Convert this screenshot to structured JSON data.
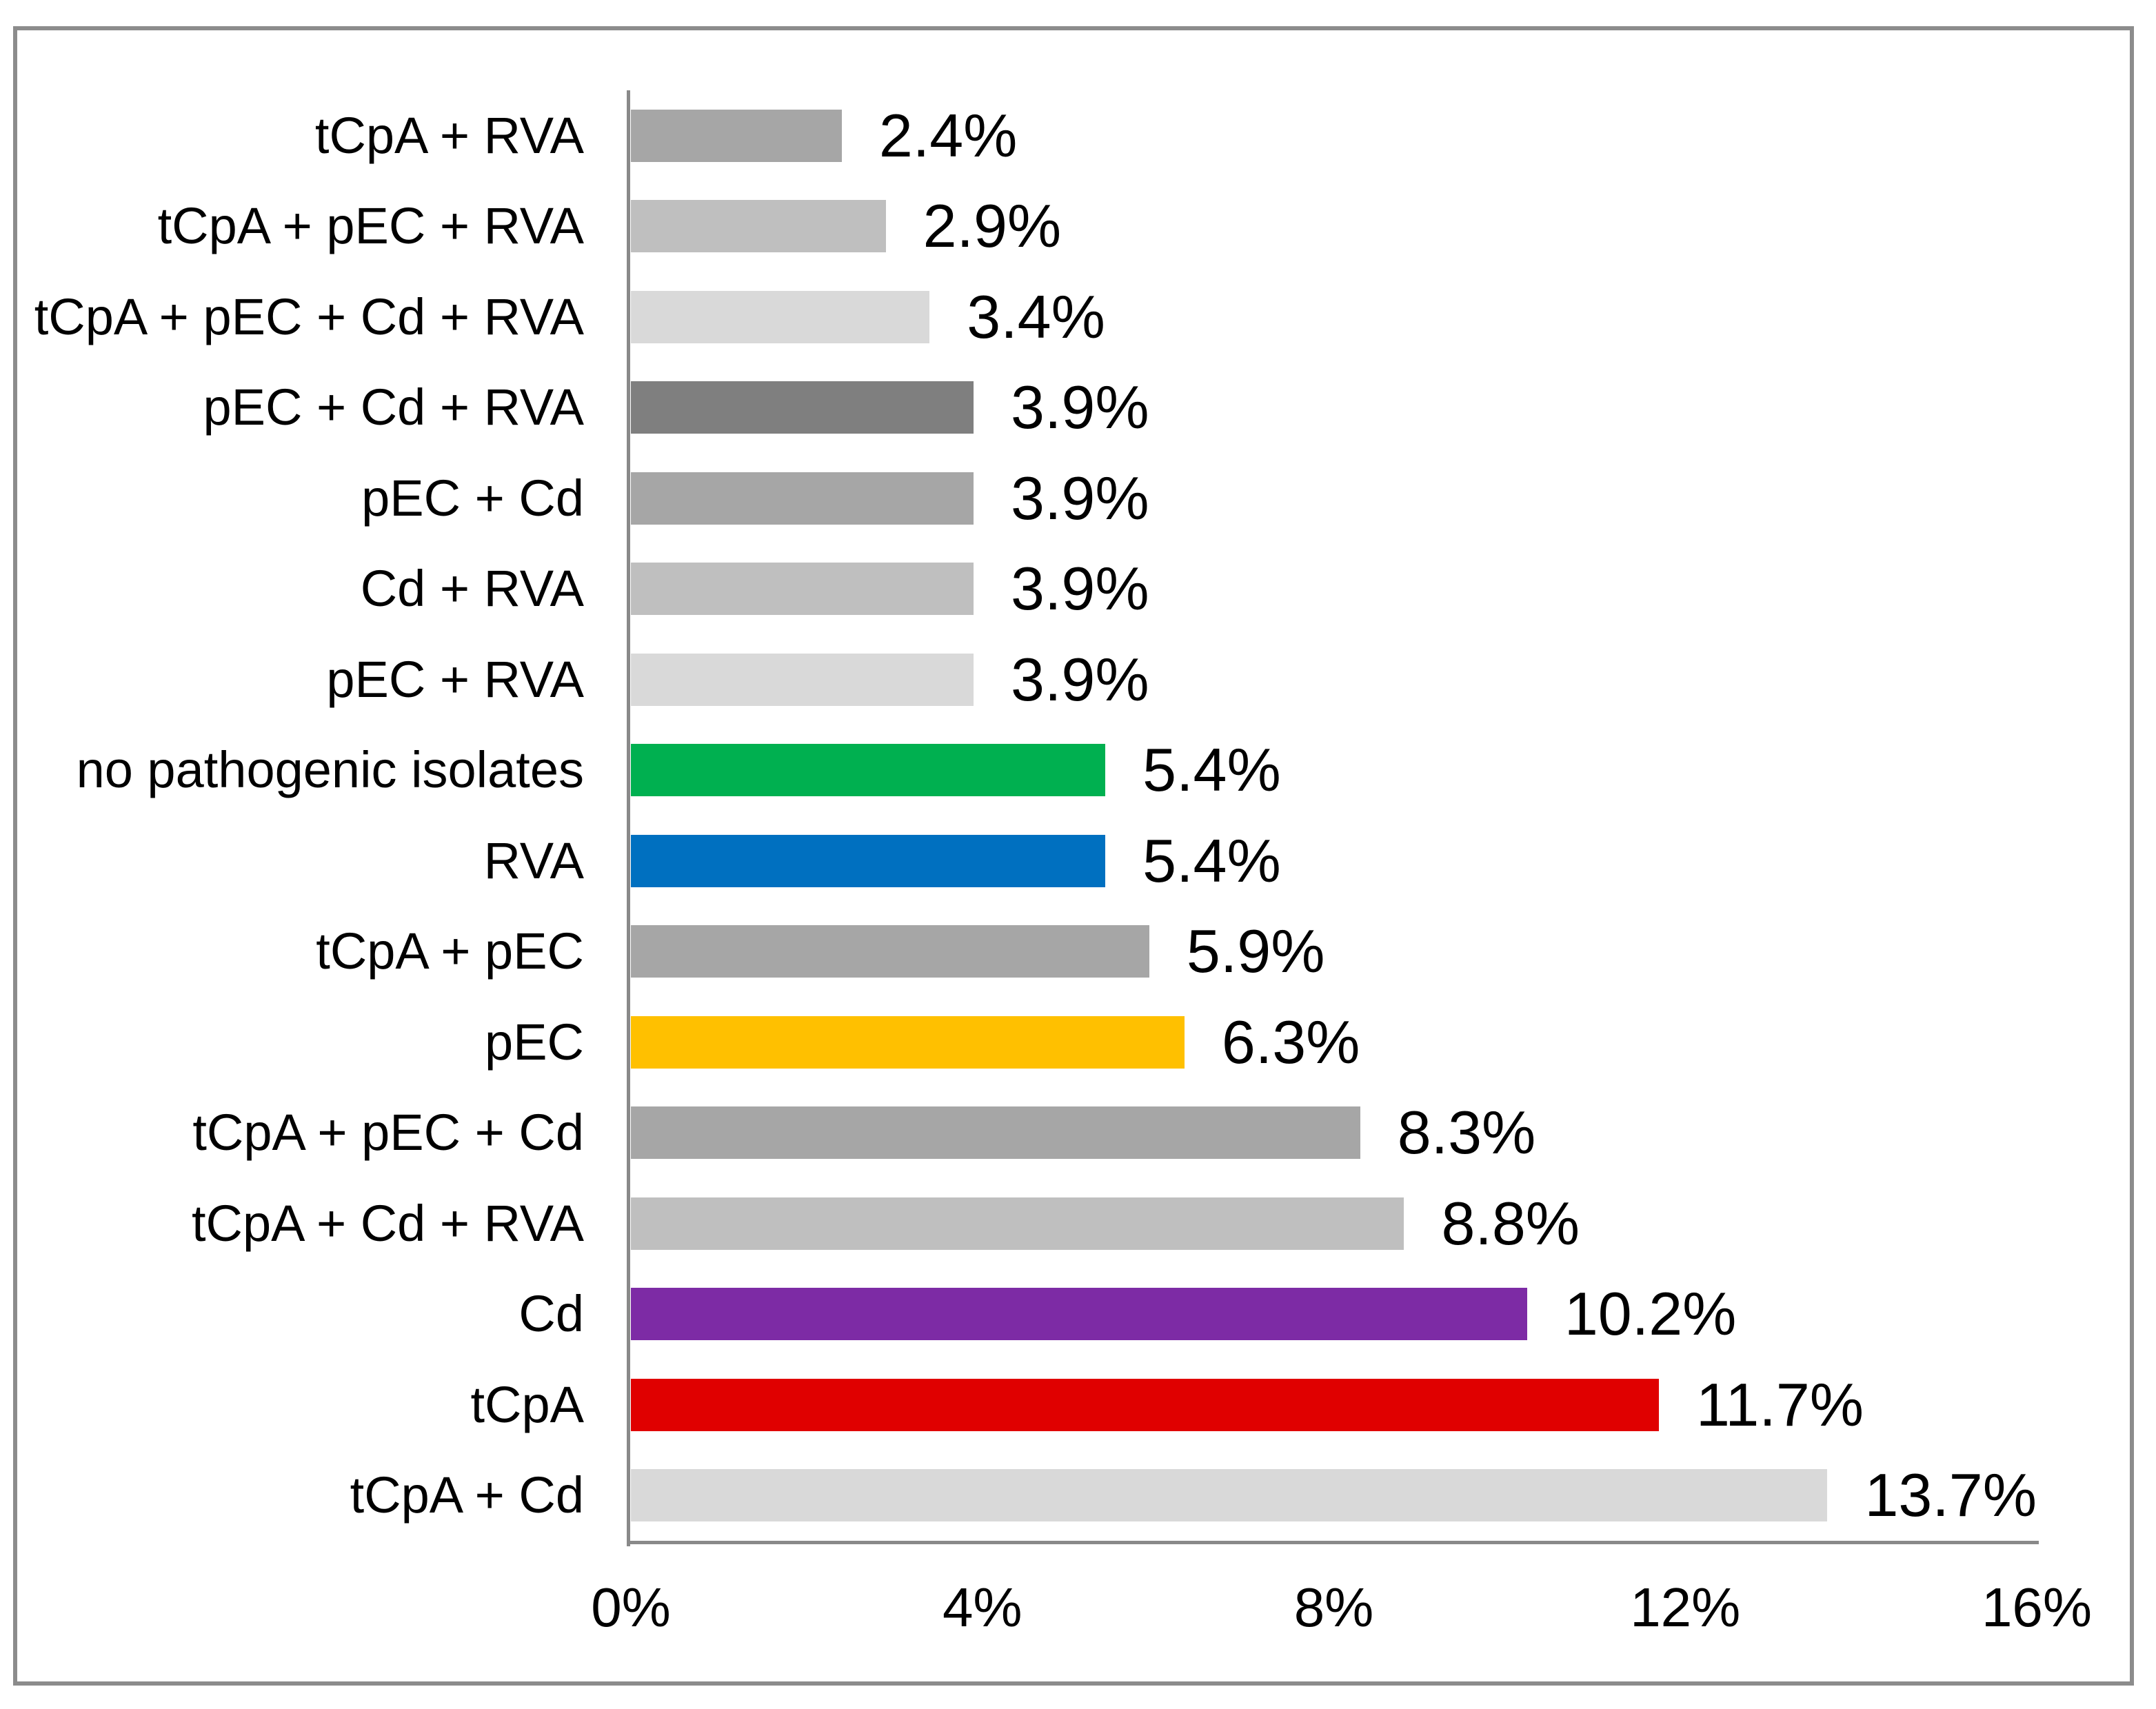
{
  "frame": {
    "border_color": "#8c8c8c",
    "background": "#ffffff"
  },
  "chart_data": {
    "type": "bar",
    "orientation": "horizontal",
    "title": "",
    "xlabel": "",
    "ylabel": "",
    "grid": false,
    "legend": false,
    "xlim": [
      0,
      16
    ],
    "x_tick_values": [
      0,
      4,
      8,
      12,
      16
    ],
    "x_tick_labels": [
      "0%",
      "4%",
      "8%",
      "12%",
      "16%"
    ],
    "axis_color": "#898989",
    "categories": [
      "tCpA + RVA",
      "tCpA + pEC + RVA",
      "tCpA + pEC + Cd + RVA",
      "pEC + Cd + RVA",
      "pEC + Cd",
      "Cd + RVA",
      "pEC + RVA",
      "no pathogenic isolates",
      "RVA",
      "tCpA + pEC",
      "pEC",
      "tCpA + pEC + Cd",
      "tCpA + Cd + RVA",
      "Cd",
      "tCpA",
      "tCpA + Cd"
    ],
    "values": [
      2.4,
      2.9,
      3.4,
      3.9,
      3.9,
      3.9,
      3.9,
      5.4,
      5.4,
      5.9,
      6.3,
      8.3,
      8.8,
      10.2,
      11.7,
      13.7
    ],
    "value_labels": [
      "2.4%",
      "2.9%",
      "3.4%",
      "3.9%",
      "3.9%",
      "3.9%",
      "3.9%",
      "5.4%",
      "5.4%",
      "5.9%",
      "6.3%",
      "8.3%",
      "8.8%",
      "10.2%",
      "11.7%",
      "13.7%"
    ],
    "bar_colors": [
      "#a6a6a6",
      "#bfbfbf",
      "#d9d9d9",
      "#7f7f7f",
      "#a6a6a6",
      "#bfbfbf",
      "#d9d9d9",
      "#00b050",
      "#0070c0",
      "#a6a6a6",
      "#ffc000",
      "#a6a6a6",
      "#bfbfbf",
      "#7d2ba5",
      "#e00000",
      "#d9d9d9"
    ]
  }
}
